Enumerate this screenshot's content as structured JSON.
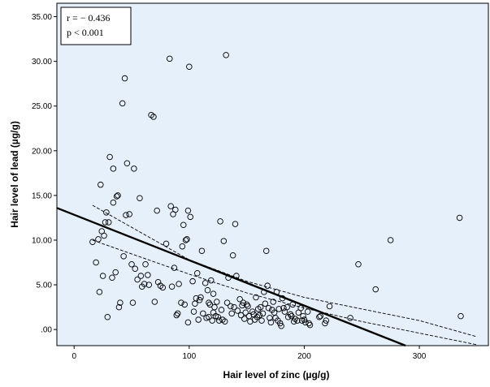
{
  "chart_data": {
    "type": "scatter",
    "xlabel": "Hair level of zinc (µg/g)",
    "ylabel": "Hair level of lead (µg/g)",
    "xlim": [
      -15,
      360
    ],
    "ylim": [
      -1.8,
      36.5
    ],
    "x_ticks": [
      0,
      100,
      200,
      300
    ],
    "x_tick_labels": [
      "0",
      "100",
      "200",
      "300"
    ],
    "y_ticks": [
      0,
      5,
      10,
      15,
      20,
      25,
      30,
      35
    ],
    "y_tick_labels": [
      ".00",
      "5.00",
      "10.00",
      "15.00",
      "20.00",
      "25.00",
      "30.00",
      "35.00"
    ],
    "plot_background": "#e6f0fb",
    "marker_color": "#000000",
    "annotation": {
      "lines": [
        "r = − 0.436",
        "p < 0.001"
      ],
      "position": "top-left"
    },
    "regression_line": {
      "x": [
        -15,
        288
      ],
      "y": [
        13.6,
        -1.8
      ]
    },
    "ci_lower": {
      "x": [
        16,
        100,
        150,
        200,
        250,
        300,
        350
      ],
      "y": [
        10.0,
        6.2,
        4.1,
        2.4,
        0.9,
        -0.4,
        -1.7
      ]
    },
    "ci_upper": {
      "x": [
        16,
        100,
        150,
        200,
        250,
        300,
        350
      ],
      "y": [
        13.9,
        7.8,
        5.4,
        3.6,
        2.3,
        1.0,
        -0.8
      ]
    },
    "points": [
      [
        16,
        9.8
      ],
      [
        19,
        7.5
      ],
      [
        21,
        10.1
      ],
      [
        22,
        4.2
      ],
      [
        23,
        16.2
      ],
      [
        25,
        6.0
      ],
      [
        24,
        11.0
      ],
      [
        26,
        10.5
      ],
      [
        27,
        12.0
      ],
      [
        28,
        13.1
      ],
      [
        29,
        1.4
      ],
      [
        30,
        12.0
      ],
      [
        31,
        19.3
      ],
      [
        33,
        5.8
      ],
      [
        34,
        14.2
      ],
      [
        34,
        18.0
      ],
      [
        36,
        6.4
      ],
      [
        37,
        14.9
      ],
      [
        38,
        15.0
      ],
      [
        39,
        2.5
      ],
      [
        40,
        3.0
      ],
      [
        42,
        25.3
      ],
      [
        43,
        8.2
      ],
      [
        44,
        28.1
      ],
      [
        45,
        12.8
      ],
      [
        46,
        18.6
      ],
      [
        48,
        12.9
      ],
      [
        50,
        7.3
      ],
      [
        51,
        3.0
      ],
      [
        52,
        18.0
      ],
      [
        53,
        6.8
      ],
      [
        55,
        5.6
      ],
      [
        57,
        14.7
      ],
      [
        58,
        6.0
      ],
      [
        59,
        4.8
      ],
      [
        61,
        5.1
      ],
      [
        62,
        7.3
      ],
      [
        64,
        6.1
      ],
      [
        65,
        5.0
      ],
      [
        67,
        24.0
      ],
      [
        69,
        23.8
      ],
      [
        70,
        3.1
      ],
      [
        72,
        13.3
      ],
      [
        73,
        5.3
      ],
      [
        75,
        4.9
      ],
      [
        77,
        4.7
      ],
      [
        80,
        9.6
      ],
      [
        83,
        30.3
      ],
      [
        84,
        13.8
      ],
      [
        85,
        4.8
      ],
      [
        86,
        12.9
      ],
      [
        87,
        6.9
      ],
      [
        88,
        13.4
      ],
      [
        89,
        1.6
      ],
      [
        90,
        1.8
      ],
      [
        91,
        5.1
      ],
      [
        93,
        3.0
      ],
      [
        94,
        9.3
      ],
      [
        95,
        11.7
      ],
      [
        96,
        2.8
      ],
      [
        97,
        10.0
      ],
      [
        98,
        10.1
      ],
      [
        99,
        0.8
      ],
      [
        99,
        13.3
      ],
      [
        100,
        29.4
      ],
      [
        101,
        12.6
      ],
      [
        103,
        5.4
      ],
      [
        104,
        2.0
      ],
      [
        105,
        2.9
      ],
      [
        106,
        3.5
      ],
      [
        107,
        6.3
      ],
      [
        108,
        1.1
      ],
      [
        109,
        3.3
      ],
      [
        110,
        3.6
      ],
      [
        111,
        8.8
      ],
      [
        112,
        1.8
      ],
      [
        114,
        5.2
      ],
      [
        115,
        1.3
      ],
      [
        116,
        4.4
      ],
      [
        117,
        3.0
      ],
      [
        117,
        1.4
      ],
      [
        118,
        2.8
      ],
      [
        119,
        5.5
      ],
      [
        120,
        1.0
      ],
      [
        121,
        4.0
      ],
      [
        121,
        1.9
      ],
      [
        122,
        2.5
      ],
      [
        123,
        1.5
      ],
      [
        124,
        3.1
      ],
      [
        125,
        1.4
      ],
      [
        126,
        1.0
      ],
      [
        127,
        12.1
      ],
      [
        128,
        2.2
      ],
      [
        129,
        1.1
      ],
      [
        130,
        9.9
      ],
      [
        131,
        0.9
      ],
      [
        132,
        30.7
      ],
      [
        133,
        3.0
      ],
      [
        134,
        5.8
      ],
      [
        136,
        2.6
      ],
      [
        137,
        1.8
      ],
      [
        138,
        8.3
      ],
      [
        139,
        2.5
      ],
      [
        140,
        11.8
      ],
      [
        141,
        6.0
      ],
      [
        142,
        2.1
      ],
      [
        144,
        3.4
      ],
      [
        145,
        1.6
      ],
      [
        146,
        2.7
      ],
      [
        147,
        3.0
      ],
      [
        148,
        1.2
      ],
      [
        149,
        1.9
      ],
      [
        150,
        2.8
      ],
      [
        151,
        2.6
      ],
      [
        152,
        1.5
      ],
      [
        153,
        0.9
      ],
      [
        155,
        2.0
      ],
      [
        156,
        1.7
      ],
      [
        157,
        1.1
      ],
      [
        158,
        3.6
      ],
      [
        159,
        1.4
      ],
      [
        160,
        2.3
      ],
      [
        161,
        1.6
      ],
      [
        162,
        2.5
      ],
      [
        163,
        1.0
      ],
      [
        164,
        1.8
      ],
      [
        165,
        4.2
      ],
      [
        166,
        2.9
      ],
      [
        167,
        8.8
      ],
      [
        168,
        4.9
      ],
      [
        169,
        2.4
      ],
      [
        170,
        1.3
      ],
      [
        171,
        0.8
      ],
      [
        172,
        2.2
      ],
      [
        173,
        3.1
      ],
      [
        174,
        1.9
      ],
      [
        175,
        1.3
      ],
      [
        176,
        4.2
      ],
      [
        177,
        1.0
      ],
      [
        178,
        2.3
      ],
      [
        179,
        0.7
      ],
      [
        180,
        0.4
      ],
      [
        181,
        3.5
      ],
      [
        182,
        2.4
      ],
      [
        183,
        2.0
      ],
      [
        185,
        2.5
      ],
      [
        186,
        1.4
      ],
      [
        188,
        1.7
      ],
      [
        189,
        1.5
      ],
      [
        190,
        2.8
      ],
      [
        191,
        0.9
      ],
      [
        192,
        1.2
      ],
      [
        194,
        1.0
      ],
      [
        195,
        1.9
      ],
      [
        197,
        2.4
      ],
      [
        198,
        1.0
      ],
      [
        199,
        1.5
      ],
      [
        200,
        1.1
      ],
      [
        201,
        0.8
      ],
      [
        203,
        2.0
      ],
      [
        204,
        0.7
      ],
      [
        205,
        0.5
      ],
      [
        213,
        1.4
      ],
      [
        214,
        1.5
      ],
      [
        218,
        0.7
      ],
      [
        219,
        1.0
      ],
      [
        222,
        2.6
      ],
      [
        240,
        1.3
      ],
      [
        247,
        7.3
      ],
      [
        262,
        4.5
      ],
      [
        275,
        10.0
      ],
      [
        335,
        12.5
      ],
      [
        336,
        1.5
      ]
    ]
  }
}
